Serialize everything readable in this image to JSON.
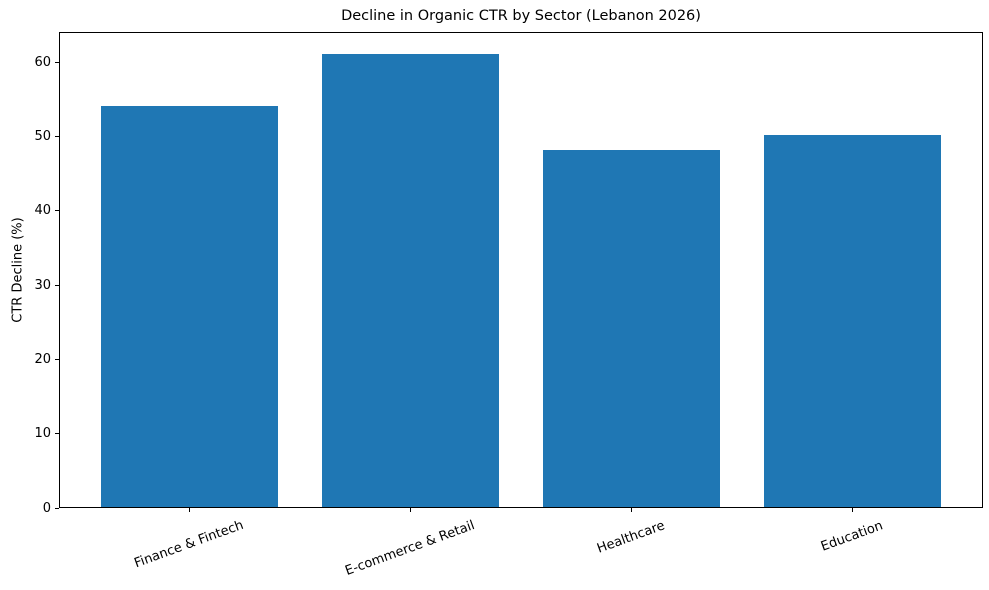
{
  "chart_data": {
    "type": "bar",
    "title": "Decline in Organic CTR by Sector (Lebanon 2026)",
    "xlabel": "",
    "ylabel": "CTR Decline (%)",
    "categories": [
      "Finance & Fintech",
      "E-commerce & Retail",
      "Healthcare",
      "Education"
    ],
    "values": [
      54,
      61,
      48,
      50
    ],
    "yticks": [
      0,
      10,
      20,
      30,
      40,
      50,
      60
    ],
    "ylim": [
      0,
      64.05
    ],
    "bar_color": "#1f77b4",
    "axis_color": "#000000",
    "text_color": "#000000",
    "background_color": "#ffffff",
    "grid": false,
    "legend": false,
    "xtick_rotation_deg": 20
  }
}
